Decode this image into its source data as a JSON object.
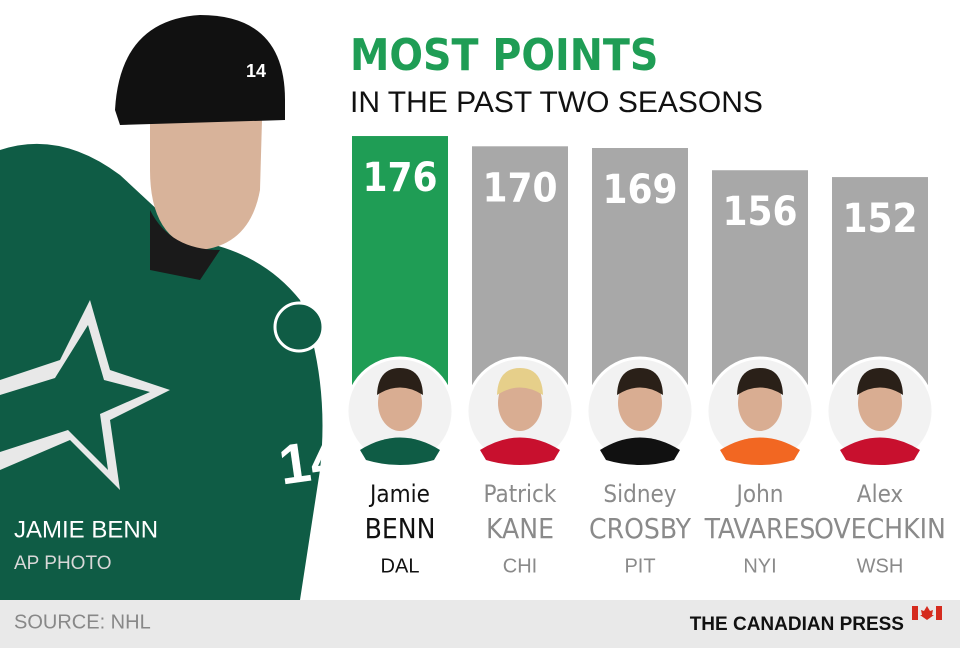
{
  "chart_data": {
    "type": "bar",
    "title": "MOST POINTS",
    "subtitle": "IN THE PAST TWO SEASONS",
    "categories": [
      [
        "Jamie",
        "BENN"
      ],
      [
        "Patrick",
        "KANE"
      ],
      [
        "Sidney",
        "CROSBY"
      ],
      [
        "John",
        "TAVARES"
      ],
      [
        "Alex",
        "OVECHKIN"
      ]
    ],
    "teams": [
      "DAL",
      "CHI",
      "PIT",
      "NYI",
      "WSH"
    ],
    "values": [
      176,
      170,
      169,
      156,
      152
    ],
    "colors": [
      "#1f9d55",
      "#a8a8a8",
      "#a8a8a8",
      "#a8a8a8",
      "#a8a8a8"
    ],
    "photo_caption": "JAMIE BENN",
    "photo_credit": "AP PHOTO",
    "source": "SOURCE: NHL",
    "credit": "THE CANADIAN PRESS"
  }
}
